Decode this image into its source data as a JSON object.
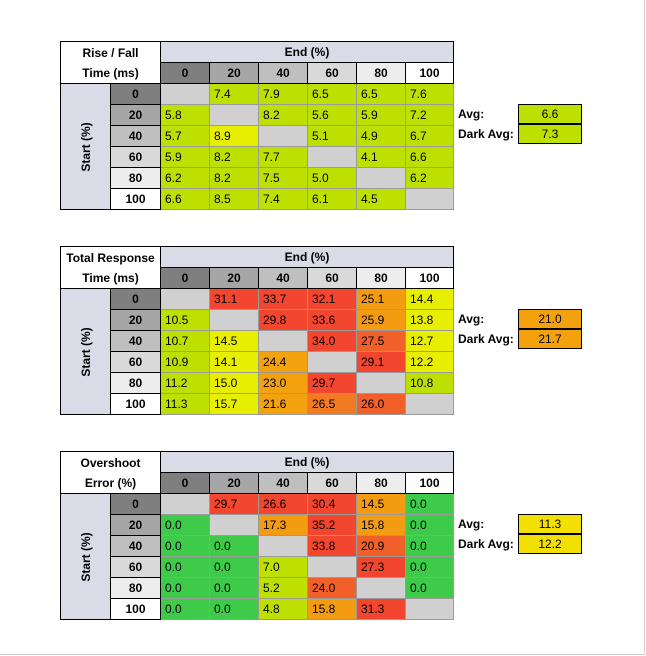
{
  "colors": {
    "header_blue": "#d9dce6",
    "empty_cell": "#d0d0d0",
    "hdr_0": "#7f7f7f",
    "hdr_20": "#a6a6a6",
    "hdr_40": "#bfbfbf",
    "hdr_60": "#d9d9d9",
    "hdr_80": "#ededed",
    "hdr_100": "#ffffff"
  },
  "chart_data": [
    {
      "type": "heatmap",
      "title_line1": "Rise / Fall",
      "title_line2": "Time (ms)",
      "end_label": "End (%)",
      "start_label": "Start (%)",
      "columns": [
        "0",
        "20",
        "40",
        "60",
        "80",
        "100"
      ],
      "rows": [
        "0",
        "20",
        "40",
        "60",
        "80",
        "100"
      ],
      "values": [
        [
          null,
          7.4,
          7.9,
          6.5,
          6.5,
          7.6
        ],
        [
          5.8,
          null,
          8.2,
          5.6,
          5.9,
          7.2
        ],
        [
          5.7,
          8.9,
          null,
          5.1,
          4.9,
          6.7
        ],
        [
          5.9,
          8.2,
          7.7,
          null,
          4.1,
          6.6
        ],
        [
          6.2,
          8.2,
          7.5,
          5.0,
          null,
          6.2
        ],
        [
          6.6,
          8.5,
          7.4,
          6.1,
          4.5,
          null
        ]
      ],
      "display": [
        [
          "",
          "7.4",
          "7.9",
          "6.5",
          "6.5",
          "7.6"
        ],
        [
          "5.8",
          "",
          "8.2",
          "5.6",
          "5.9",
          "7.2"
        ],
        [
          "5.7",
          "8.9",
          "",
          "5.1",
          "4.9",
          "6.7"
        ],
        [
          "5.9",
          "8.2",
          "7.7",
          "",
          "4.1",
          "6.6"
        ],
        [
          "6.2",
          "8.2",
          "7.5",
          "5.0",
          "",
          "6.2"
        ],
        [
          "6.6",
          "8.5",
          "7.4",
          "6.1",
          "4.5",
          ""
        ]
      ],
      "cell_colors": [
        [
          "#d0d0d0",
          "#bde000",
          "#bde000",
          "#bde000",
          "#bde000",
          "#bde000"
        ],
        [
          "#bde000",
          "#d0d0d0",
          "#bde000",
          "#bde000",
          "#bde000",
          "#bde000"
        ],
        [
          "#bde000",
          "#e8ee00",
          "#d0d0d0",
          "#bde000",
          "#bde000",
          "#bde000"
        ],
        [
          "#bde000",
          "#bde000",
          "#bde000",
          "#d0d0d0",
          "#bde000",
          "#bde000"
        ],
        [
          "#bde000",
          "#bde000",
          "#bde000",
          "#bde000",
          "#d0d0d0",
          "#bde000"
        ],
        [
          "#bde000",
          "#bde000",
          "#bde000",
          "#bde000",
          "#bde000",
          "#d0d0d0"
        ]
      ],
      "avg": {
        "label": "Avg:",
        "value": "6.6",
        "color": "#bde000"
      },
      "dark_avg": {
        "label": "Dark Avg:",
        "value": "7.3",
        "color": "#bde000"
      }
    },
    {
      "type": "heatmap",
      "title_line1": "Total Response",
      "title_line2": "Time (ms)",
      "end_label": "End (%)",
      "start_label": "Start (%)",
      "columns": [
        "0",
        "20",
        "40",
        "60",
        "80",
        "100"
      ],
      "rows": [
        "0",
        "20",
        "40",
        "60",
        "80",
        "100"
      ],
      "values": [
        [
          null,
          31.1,
          33.7,
          32.1,
          25.1,
          14.4
        ],
        [
          10.5,
          null,
          29.8,
          33.6,
          25.9,
          13.8
        ],
        [
          10.7,
          14.5,
          null,
          34.0,
          27.5,
          12.7
        ],
        [
          10.9,
          14.1,
          24.4,
          null,
          29.1,
          12.2
        ],
        [
          11.2,
          15.0,
          23.0,
          29.7,
          null,
          10.8
        ],
        [
          11.3,
          15.7,
          21.6,
          26.5,
          26.0,
          null
        ]
      ],
      "display": [
        [
          "",
          "31.1",
          "33.7",
          "32.1",
          "25.1",
          "14.4"
        ],
        [
          "10.5",
          "",
          "29.8",
          "33.6",
          "25.9",
          "13.8"
        ],
        [
          "10.7",
          "14.5",
          "",
          "34.0",
          "27.5",
          "12.7"
        ],
        [
          "10.9",
          "14.1",
          "24.4",
          "",
          "29.1",
          "12.2"
        ],
        [
          "11.2",
          "15.0",
          "23.0",
          "29.7",
          "",
          "10.8"
        ],
        [
          "11.3",
          "15.7",
          "21.6",
          "26.5",
          "26.0",
          ""
        ]
      ],
      "cell_colors": [
        [
          "#d0d0d0",
          "#f2462e",
          "#f2462e",
          "#f2462e",
          "#f39c12",
          "#e8ee00"
        ],
        [
          "#bde000",
          "#d0d0d0",
          "#f2462e",
          "#f2462e",
          "#f39c12",
          "#e8ee00"
        ],
        [
          "#bde000",
          "#e8ee00",
          "#d0d0d0",
          "#f2462e",
          "#f2602a",
          "#e8ee00"
        ],
        [
          "#bde000",
          "#e8ee00",
          "#f3a20e",
          "#d0d0d0",
          "#f2462e",
          "#e8ee00"
        ],
        [
          "#bde000",
          "#e8ee00",
          "#f3a20e",
          "#f2462e",
          "#d0d0d0",
          "#bde000"
        ],
        [
          "#bde000",
          "#e8ee00",
          "#f3a20e",
          "#f27a22",
          "#f2602a",
          "#d0d0d0"
        ]
      ],
      "avg": {
        "label": "Avg:",
        "value": "21.0",
        "color": "#f3a20e"
      },
      "dark_avg": {
        "label": "Dark Avg:",
        "value": "21.7",
        "color": "#f3a20e"
      }
    },
    {
      "type": "heatmap",
      "title_line1": "Overshoot",
      "title_line2": "Error (%)",
      "end_label": "End (%)",
      "start_label": "Start (%)",
      "columns": [
        "0",
        "20",
        "40",
        "60",
        "80",
        "100"
      ],
      "rows": [
        "0",
        "20",
        "40",
        "60",
        "80",
        "100"
      ],
      "values": [
        [
          null,
          29.7,
          26.6,
          30.4,
          14.5,
          0.0
        ],
        [
          0.0,
          null,
          17.3,
          35.2,
          15.8,
          0.0
        ],
        [
          0.0,
          0.0,
          null,
          33.8,
          20.9,
          0.0
        ],
        [
          0.0,
          0.0,
          7.0,
          null,
          27.3,
          0.0
        ],
        [
          0.0,
          0.0,
          5.2,
          24.0,
          null,
          0.0
        ],
        [
          0.0,
          0.0,
          4.8,
          15.8,
          31.3,
          null
        ]
      ],
      "display": [
        [
          "",
          "29.7",
          "26.6",
          "30.4",
          "14.5",
          "0.0"
        ],
        [
          "0.0",
          "",
          "17.3",
          "35.2",
          "15.8",
          "0.0"
        ],
        [
          "0.0",
          "0.0",
          "",
          "33.8",
          "20.9",
          "0.0"
        ],
        [
          "0.0",
          "0.0",
          "7.0",
          "",
          "27.3",
          "0.0"
        ],
        [
          "0.0",
          "0.0",
          "5.2",
          "24.0",
          "",
          "0.0"
        ],
        [
          "0.0",
          "0.0",
          "4.8",
          "15.8",
          "31.3",
          ""
        ]
      ],
      "cell_colors": [
        [
          "#d0d0d0",
          "#f2462e",
          "#f2462e",
          "#f2462e",
          "#f39c12",
          "#3ecb4a"
        ],
        [
          "#3ecb4a",
          "#d0d0d0",
          "#f39c12",
          "#f2462e",
          "#f39c12",
          "#3ecb4a"
        ],
        [
          "#3ecb4a",
          "#3ecb4a",
          "#d0d0d0",
          "#f2462e",
          "#f2602a",
          "#3ecb4a"
        ],
        [
          "#3ecb4a",
          "#3ecb4a",
          "#bde000",
          "#d0d0d0",
          "#f2462e",
          "#3ecb4a"
        ],
        [
          "#3ecb4a",
          "#3ecb4a",
          "#bde000",
          "#f2602a",
          "#d0d0d0",
          "#3ecb4a"
        ],
        [
          "#3ecb4a",
          "#3ecb4a",
          "#bde000",
          "#f39c12",
          "#f2462e",
          "#d0d0d0"
        ]
      ],
      "avg": {
        "label": "Avg:",
        "value": "11.3",
        "color": "#f2e000"
      },
      "dark_avg": {
        "label": "Dark Avg:",
        "value": "12.2",
        "color": "#f2e000"
      }
    }
  ]
}
